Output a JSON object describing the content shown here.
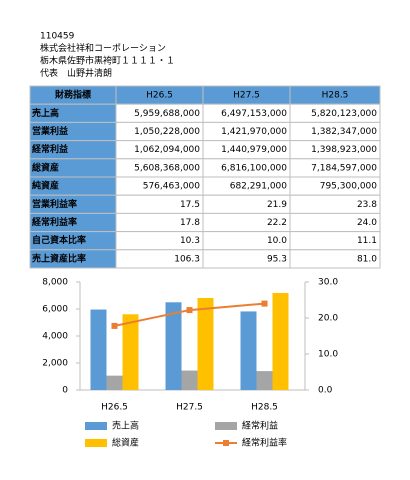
{
  "header": {
    "lines": [
      "110459",
      "株式会社祥和コーポレーション",
      "栃木県佐野市黒袴町１１１１・１",
      "代表　山野井清朗"
    ]
  },
  "table": {
    "headers": [
      "財務指標",
      "H26.5",
      "H27.5",
      "H28.5"
    ],
    "rows": [
      [
        "売上高",
        "5,959,688,000",
        "6,497,153,000",
        "5,820,123,000"
      ],
      [
        "営業利益",
        "1,050,228,000",
        "1,421,970,000",
        "1,382,347,000"
      ],
      [
        "経常利益",
        "1,062,094,000",
        "1,440,979,000",
        "1,398,923,000"
      ],
      [
        "総資産",
        "5,608,368,000",
        "6,816,100,000",
        "7,184,597,000"
      ],
      [
        "純資産",
        "576,463,000",
        "682,291,000",
        "795,300,000"
      ],
      [
        "営業利益率",
        "17.5",
        "21.9",
        "23.8"
      ],
      [
        "経常利益率",
        "17.8",
        "22.2",
        "24.0"
      ],
      [
        "自己資本比率",
        "10.3",
        "10.0",
        "11.1"
      ],
      [
        "売上資産比率",
        "106.3",
        "95.3",
        "81.0"
      ]
    ]
  },
  "chart_data": {
    "type": "bar",
    "categories": [
      "H26.5",
      "H27.5",
      "H28.5"
    ],
    "series": [
      {
        "name": "売上高",
        "color": "#5b9bd5",
        "values": [
          5960,
          6497,
          5820
        ]
      },
      {
        "name": "経常利益",
        "color": "#a5a5a5",
        "values": [
          1062,
          1441,
          1399
        ]
      },
      {
        "name": "総資産",
        "color": "#ffc000",
        "values": [
          5608,
          6816,
          7185
        ]
      },
      {
        "name": "経常利益率",
        "color": "#ed7d31",
        "type": "line",
        "axis": "y2",
        "values": [
          17.8,
          22.2,
          24.0
        ]
      }
    ],
    "ylim": [
      0,
      8000
    ],
    "yticks": [
      0,
      {
        "value": 2000,
        "label": "2,000"
      },
      {
        "value": 4000,
        "label": "4,000"
      },
      {
        "value": 6000,
        "label": "6,000"
      },
      {
        "value": 8000,
        "label": "8,000"
      }
    ],
    "y2lim": [
      0,
      30
    ],
    "y2ticks": [
      {
        "value": 0,
        "label": "0.0"
      },
      {
        "value": 10,
        "label": "10.0"
      },
      {
        "value": 20,
        "label": "20.0"
      },
      {
        "value": 30,
        "label": "30.0"
      }
    ],
    "grid": false
  }
}
